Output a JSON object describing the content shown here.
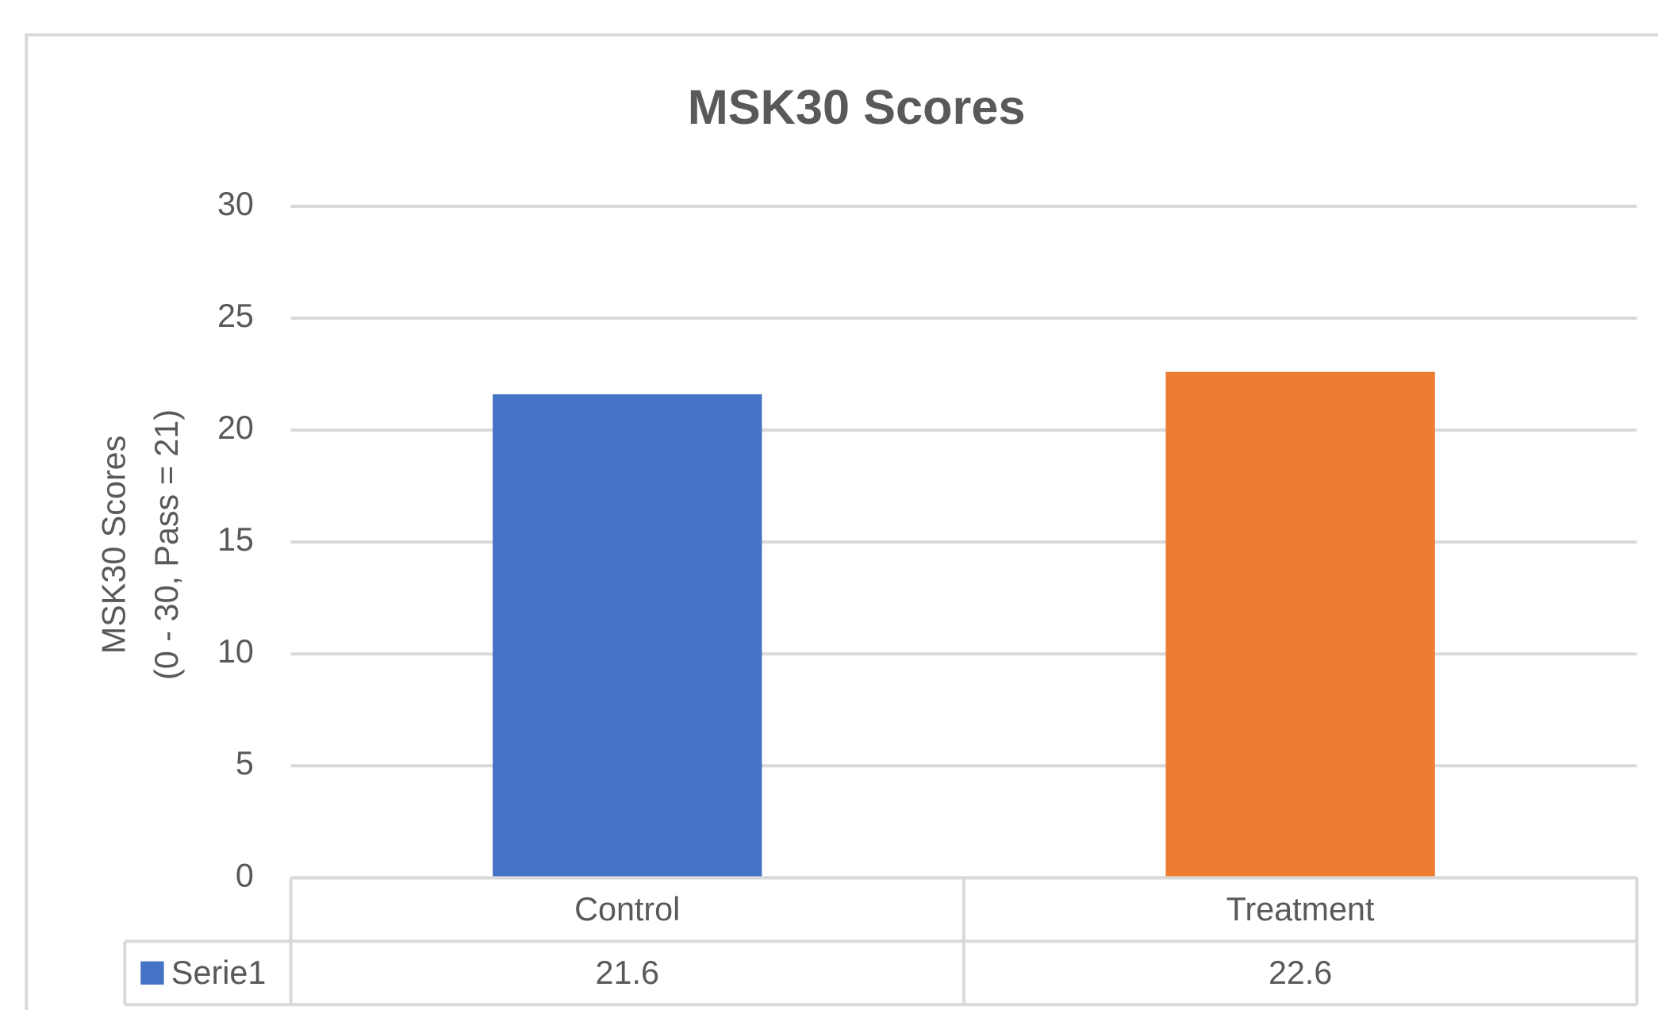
{
  "chart_data": {
    "type": "bar",
    "title": "MSK30 Scores",
    "y_label": [
      "MSK30 Scores",
      "(0 - 30, Pass = 21)"
    ],
    "categories": [
      "Control",
      "Treatment"
    ],
    "series": [
      {
        "name": "Serie1",
        "color": "#4472c4",
        "values": [
          21.6,
          22.6
        ]
      }
    ],
    "bar_colors": [
      "#4472c4",
      "#ed7d31"
    ],
    "ylim": [
      0,
      30
    ],
    "yticks": [
      0,
      5,
      10,
      15,
      20,
      25,
      30
    ],
    "grid": true,
    "data_table": true
  }
}
